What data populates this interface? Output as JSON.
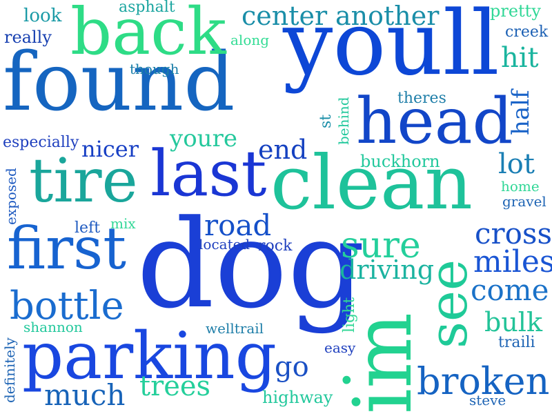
{
  "words": [
    {
      "text": "found",
      "color": "#1565c0"
    },
    {
      "text": "youll",
      "color": "#0d47d6"
    },
    {
      "text": "dog",
      "color": "#1a3fd6"
    },
    {
      "text": "clean",
      "color": "#1ec29a"
    },
    {
      "text": "parking",
      "color": "#1947e0"
    },
    {
      "text": "head",
      "color": "#1246c8"
    },
    {
      "text": "last",
      "color": "#1a36d4"
    },
    {
      "text": "back",
      "color": "#2edc86"
    },
    {
      "text": "tire",
      "color": "#1aa69b"
    },
    {
      "text": "first",
      "color": "#1763d0"
    },
    {
      "text": "im",
      "color": "#22d290"
    },
    {
      "text": "see",
      "color": "#1fca98"
    },
    {
      "text": "broken",
      "color": "#1563c2"
    },
    {
      "text": "bottle",
      "color": "#1a6ccf"
    },
    {
      "text": "sure",
      "color": "#24cf9b"
    },
    {
      "text": "center",
      "color": "#1a8ea8"
    },
    {
      "text": "another",
      "color": "#1a8ea8"
    },
    {
      "text": "road",
      "color": "#1550c9"
    },
    {
      "text": "cross",
      "color": "#1750c8"
    },
    {
      "text": "miles",
      "color": "#1a55d4"
    },
    {
      "text": "come",
      "color": "#1b72c8"
    },
    {
      "text": "driving",
      "color": "#1bb3a0"
    },
    {
      "text": "much",
      "color": "#1763b8"
    },
    {
      "text": "trees",
      "color": "#25cf9b"
    },
    {
      "text": "nicer",
      "color": "#173fc4"
    },
    {
      "text": "youre",
      "color": "#24c89c"
    },
    {
      "text": "end",
      "color": "#1541c0"
    },
    {
      "text": "lot",
      "color": "#1b7fb4"
    },
    {
      "text": "go",
      "color": "#1a50c4"
    },
    {
      "text": "hit",
      "color": "#1ab49e"
    },
    {
      "text": "half",
      "color": "#1b64c8"
    },
    {
      "text": "bulk",
      "color": "#22c398"
    },
    {
      "text": "buckhorn",
      "color": "#22c89c"
    },
    {
      "text": "look",
      "color": "#1a9aa6"
    },
    {
      "text": "asphalt",
      "color": "#1ba5a0"
    },
    {
      "text": "really",
      "color": "#163fb0"
    },
    {
      "text": "along",
      "color": "#32dc94"
    },
    {
      "text": "though",
      "color": "#1b7ea8"
    },
    {
      "text": "pretty",
      "color": "#30d796"
    },
    {
      "text": "creek",
      "color": "#1b60b4"
    },
    {
      "text": "theres",
      "color": "#1e7ea8"
    },
    {
      "text": "especially",
      "color": "#1e3fbe"
    },
    {
      "text": "st",
      "color": "#1a8ea8"
    },
    {
      "text": "behind",
      "color": "#22c89c"
    },
    {
      "text": "home",
      "color": "#30d796"
    },
    {
      "text": "gravel",
      "color": "#1e64b4"
    },
    {
      "text": "exposed",
      "color": "#1e5ac0"
    },
    {
      "text": "left",
      "color": "#1e5ac0"
    },
    {
      "text": "mix",
      "color": "#30d796"
    },
    {
      "text": "located",
      "color": "#1e3fbe"
    },
    {
      "text": "rock",
      "color": "#1e3fbe"
    },
    {
      "text": "shannon",
      "color": "#22c89c"
    },
    {
      "text": "welltrail",
      "color": "#1e7ea8"
    },
    {
      "text": "light",
      "color": "#30d796"
    },
    {
      "text": "easy",
      "color": "#1e3fbe"
    },
    {
      "text": "traili",
      "color": "#1e64b4"
    },
    {
      "text": "definitely",
      "color": "#1e64b4"
    },
    {
      "text": "highway",
      "color": "#22c89c"
    },
    {
      "text": "steve",
      "color": "#1e64b4"
    },
    {
      "text": ".",
      "color": "#22d290"
    }
  ]
}
